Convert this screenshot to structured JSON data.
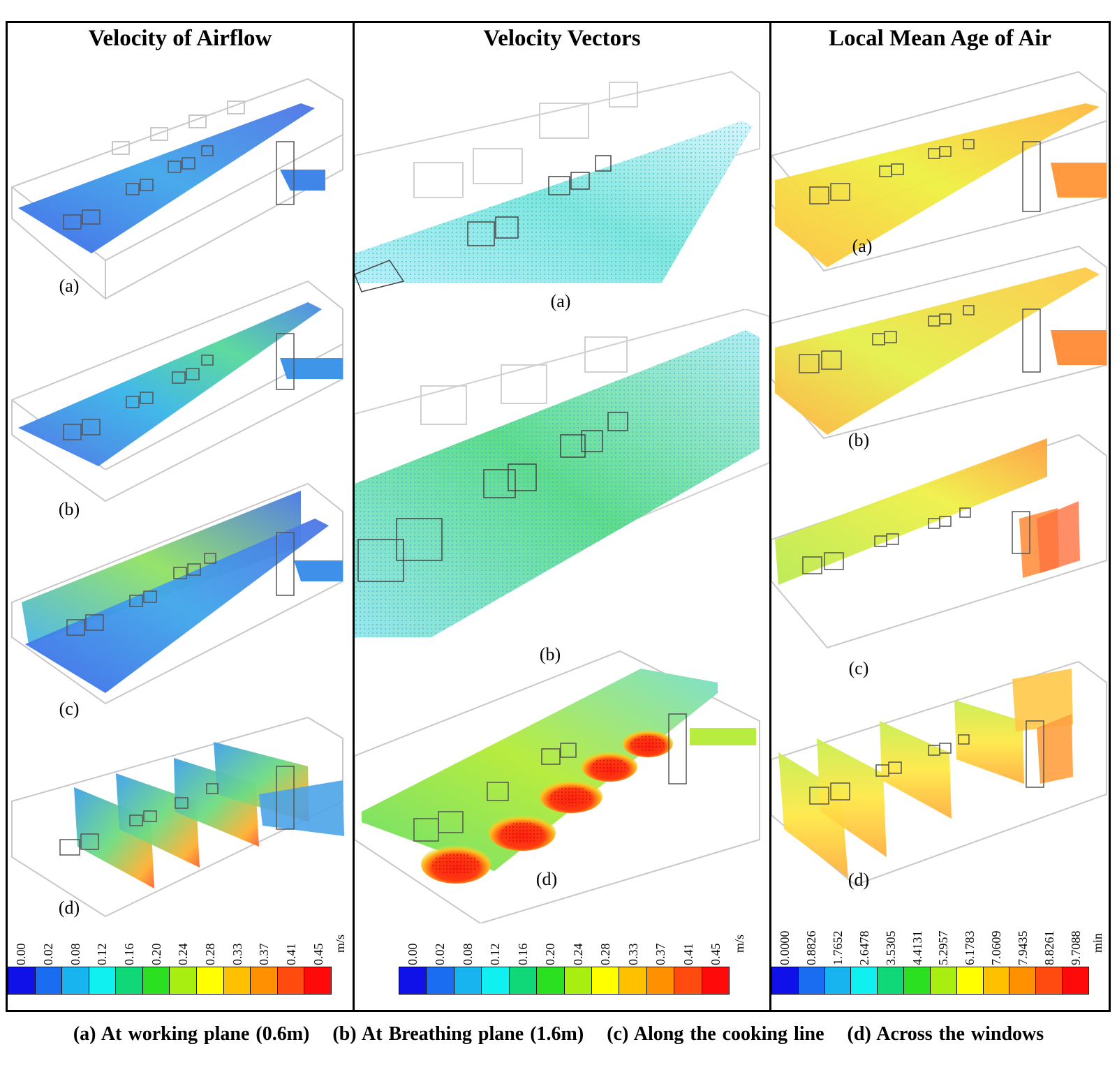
{
  "panels": [
    {
      "title": "Velocity of Airflow",
      "labels": [
        "(a)",
        "(b)",
        "(c)",
        "(d)"
      ],
      "scale": {
        "ticks": [
          "0.00",
          "0.02",
          "0.08",
          "0.12",
          "0.16",
          "0.20",
          "0.24",
          "0.28",
          "0.33",
          "0.37",
          "0.41",
          "0.45"
        ],
        "unit": "m/s"
      }
    },
    {
      "title": "Velocity  Vectors",
      "labels": [
        "(a)",
        "(b)",
        "(d)"
      ],
      "scale": {
        "ticks": [
          "0.00",
          "0.02",
          "0.08",
          "0.12",
          "0.16",
          "0.20",
          "0.24",
          "0.28",
          "0.33",
          "0.37",
          "0.41",
          "0.45"
        ],
        "unit": "m/s"
      }
    },
    {
      "title": "Local Mean Age of Air",
      "labels": [
        "(a)",
        "(b)",
        "(c)",
        "(d)"
      ],
      "scale": {
        "ticks": [
          "0.0000",
          "0.8826",
          "1.7652",
          "2.6478",
          "3.5305",
          "4.4131",
          "5.2957",
          "6.1783",
          "7.0609",
          "7.9435",
          "8.8261",
          "9.7088"
        ],
        "unit": "min"
      }
    }
  ],
  "colormap": [
    "#1010e8",
    "#1a6cf0",
    "#18b4ef",
    "#10f0f0",
    "#10d878",
    "#2ae020",
    "#a8ee10",
    "#ffff00",
    "#ffc000",
    "#ff9000",
    "#ff4a10",
    "#ff0a0a"
  ],
  "caption": [
    "(a) At working plane (0.6m)",
    "(b) At Breathing plane (1.6m)",
    "(c) Along the cooking line",
    "(d) Across the windows"
  ]
}
